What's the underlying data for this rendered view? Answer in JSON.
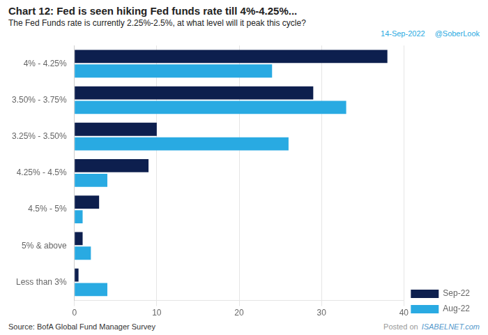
{
  "chart_data": {
    "type": "bar",
    "orientation": "horizontal",
    "title": "Chart 12: Fed is seen hiking Fed funds rate till 4%-4.25%...",
    "subtitle": "The Fed Funds rate is currently 2.25%-2.5%, at what level will it peak this cycle?",
    "annotations": [
      "14-Sep-2022",
      "@SoberLook",
      "Posted on",
      "ISABELNET.com",
      "Source: BofA Global Fund Manager Survey"
    ],
    "categories": [
      "4% - 4.25%",
      "3.50% - 3.75%",
      "3.25% - 3.50%",
      "4.25% - 4.5%",
      "4.5% - 5%",
      "5% & above",
      "Less than 3%"
    ],
    "series": [
      {
        "name": "Sep-22",
        "color": "#0d1f4e",
        "values": [
          38,
          29,
          10,
          9,
          3,
          1,
          0.5
        ]
      },
      {
        "name": "Aug-22",
        "color": "#29aae2",
        "values": [
          24,
          33,
          26,
          4,
          1,
          2,
          4
        ]
      }
    ],
    "xlim": [
      0,
      40
    ],
    "xticks": [
      0,
      10,
      20,
      30,
      40
    ],
    "grid": true,
    "legend": "lower right"
  }
}
